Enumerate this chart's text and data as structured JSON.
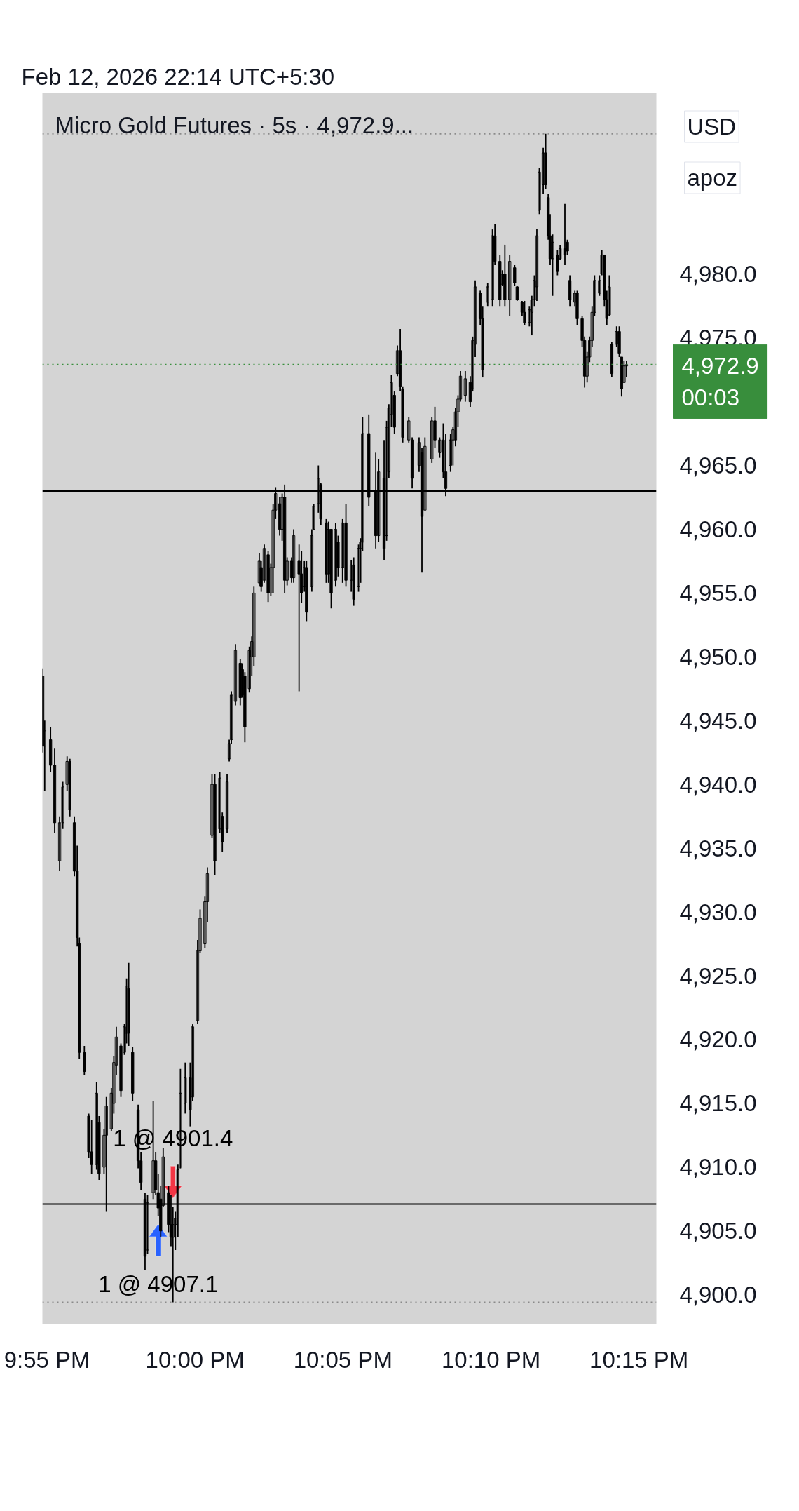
{
  "chart_data": {
    "type": "candlestick",
    "title": "Micro Gold Futures · 5s · 4,972.9...",
    "subtitle": "Feb 12, 2026 22:14 UTC+5:30",
    "color": "#000000",
    "x": [
      21.9143,
      21.9154,
      21.9187,
      21.921,
      21.9238,
      21.9256,
      21.928,
      21.9296,
      21.9321,
      21.9337,
      21.9349,
      21.9377,
      21.9402,
      21.9418,
      21.9446,
      21.946,
      21.9488,
      21.9501,
      21.9529,
      21.9543,
      21.9557,
      21.9583,
      21.9603,
      21.9615,
      21.9627,
      21.9649,
      21.968,
      21.9696,
      21.9719,
      21.9733,
      21.9765,
      21.9779,
      21.9793,
      21.9807,
      21.9821,
      21.9851,
      21.9865,
      21.9876,
      21.989,
      21.9904,
      21.9918,
      21.9945,
      21.9973,
      21.9987,
      22.0015,
      22.0029,
      22.0056,
      22.007,
      22.0096,
      22.0112,
      22.014,
      22.0154,
      22.0181,
      22.0193,
      22.0205,
      22.0228,
      22.0255,
      22.0267,
      22.0281,
      22.0306,
      22.032,
      22.0332,
      22.0362,
      22.0373,
      22.039,
      22.0412,
      22.0427,
      22.044,
      22.0454,
      22.0477,
      22.0491,
      22.0505,
      22.0519,
      22.0544,
      22.0556,
      22.0586,
      22.06,
      22.0616,
      22.0628,
      22.0658,
      22.0669,
      22.0695,
      22.0709,
      22.0739,
      22.0752,
      22.0767,
      22.0792,
      22.0806,
      22.0831,
      22.085,
      22.088,
      22.0894,
      22.0921,
      22.0933,
      22.0944,
      22.0979,
      22.1018,
      22.1034,
      22.1065,
      22.1079,
      22.1092,
      22.1106,
      22.1123,
      22.114,
      22.1156,
      22.117,
      22.1204,
      22.1223,
      22.1262,
      22.1278,
      22.1295,
      22.1334,
      22.1351,
      22.1378,
      22.1398,
      22.1412,
      22.1439,
      22.1453,
      22.1467,
      22.1481,
      22.1495,
      22.1522,
      22.155,
      22.1564,
      22.1578,
      22.1606,
      22.162,
      22.1648,
      22.1675,
      22.1689,
      22.1717,
      22.1731,
      22.1745,
      22.1772,
      22.18,
      22.1814,
      22.1842,
      22.1856,
      22.1883,
      22.1897,
      22.1911,
      22.1925,
      22.1939,
      22.1961,
      22.1975,
      22.1989,
      22.2,
      22.2014,
      22.2041,
      22.2056,
      22.2083,
      22.2097,
      22.2111,
      22.2139,
      22.2152,
      22.218,
      22.2194,
      22.2208,
      22.2222,
      22.2236,
      22.225,
      22.2278,
      22.2291,
      22.2305,
      22.2319,
      22.2333,
      22.2347,
      22.2374,
      22.2389,
      22.2402,
      22.2416,
      22.243
    ],
    "ohlc": [
      [
        4948.5,
        4949.1,
        4942.5,
        4943.0
      ],
      [
        4943.0,
        4945.0,
        4939.5,
        4944.2
      ],
      [
        4943.5,
        4944.5,
        4941.0,
        4941.5
      ],
      [
        4941.5,
        4942.8,
        4936.2,
        4937.0
      ],
      [
        4934.0,
        4937.5,
        4933.2,
        4937.0
      ],
      [
        4937.0,
        4940.2,
        4936.5,
        4939.8
      ],
      [
        4940.0,
        4942.2,
        4939.5,
        4941.8
      ],
      [
        4941.8,
        4942.0,
        4937.5,
        4938.0
      ],
      [
        4937.0,
        4937.5,
        4932.8,
        4933.2
      ],
      [
        4933.2,
        4935.2,
        4927.3,
        4928.0
      ],
      [
        4927.5,
        4928.0,
        4918.5,
        4919.0
      ],
      [
        4919.0,
        4919.5,
        4917.2,
        4917.5
      ],
      [
        4914.0,
        4914.2,
        4910.7,
        4911.2
      ],
      [
        4911.2,
        4913.7,
        4909.5,
        4910.2
      ],
      [
        4910.2,
        4916.7,
        4909.8,
        4915.8
      ],
      [
        4913.5,
        4914.0,
        4909.0,
        4909.5
      ],
      [
        4910.0,
        4913.0,
        4909.5,
        4912.5
      ],
      [
        4912.5,
        4915.5,
        4906.5,
        4914.8
      ],
      [
        4913.0,
        4916.2,
        4912.8,
        4915.8
      ],
      [
        4915.0,
        4918.7,
        4914.2,
        4918.2
      ],
      [
        4918.0,
        4921.0,
        4917.2,
        4920.2
      ],
      [
        4919.5,
        4919.7,
        4915.5,
        4916.0
      ],
      [
        4919.0,
        4921.2,
        4918.8,
        4921.0
      ],
      [
        4920.5,
        4924.8,
        4919.7,
        4924.2
      ],
      [
        4924.0,
        4926.0,
        4919.5,
        4920.5
      ],
      [
        4919.0,
        4919.4,
        4915.2,
        4915.8
      ],
      [
        4914.5,
        4914.9,
        4909.9,
        4910.5
      ],
      [
        4910.5,
        4911.2,
        4908.2,
        4908.8
      ],
      [
        4907.5,
        4908.0,
        4901.9,
        4903.0
      ],
      [
        4903.5,
        4907.8,
        4903.2,
        4907.2
      ],
      [
        4908.0,
        4915.2,
        4907.5,
        4910.5
      ],
      [
        4910.5,
        4911.2,
        4907.8,
        4908.2
      ],
      [
        4908.0,
        4909.5,
        4906.2,
        4906.8
      ],
      [
        4907.5,
        4908.5,
        4904.5,
        4905.0
      ],
      [
        4907.0,
        4911.5,
        4906.9,
        4910.8
      ],
      [
        4908.0,
        4908.5,
        4904.9,
        4905.5
      ],
      [
        4905.5,
        4907.8,
        4903.8,
        4904.5
      ],
      [
        4904.5,
        4906.9,
        4899.4,
        4905.5
      ],
      [
        4905.5,
        4906.5,
        4903.5,
        4906.0
      ],
      [
        4906.0,
        4910.2,
        4904.5,
        4909.8
      ],
      [
        4910.0,
        4917.7,
        4909.9,
        4915.8
      ],
      [
        4915.0,
        4918.2,
        4914.2,
        4917.0
      ],
      [
        4917.0,
        4918.2,
        4913.2,
        4914.5
      ],
      [
        4915.5,
        4921.2,
        4915.2,
        4921.0
      ],
      [
        4921.5,
        4927.8,
        4921.2,
        4927.0
      ],
      [
        4927.0,
        4930.2,
        4926.8,
        4929.5
      ],
      [
        4927.5,
        4931.2,
        4927.2,
        4930.8
      ],
      [
        4930.8,
        4933.5,
        4929.2,
        4933.0
      ],
      [
        4936.0,
        4940.8,
        4935.8,
        4940.0
      ],
      [
        4940.0,
        4940.8,
        4932.9,
        4934.0
      ],
      [
        4936.5,
        4941.0,
        4936.2,
        4940.5
      ],
      [
        4937.5,
        4937.8,
        4934.7,
        4935.5
      ],
      [
        4936.5,
        4940.8,
        4936.2,
        4940.2
      ],
      [
        4942.0,
        4943.5,
        4941.8,
        4943.2
      ],
      [
        4943.5,
        4947.3,
        4943.2,
        4947.0
      ],
      [
        4946.5,
        4951.0,
        4946.2,
        4950.5
      ],
      [
        4949.5,
        4949.8,
        4946.2,
        4946.8
      ],
      [
        4947.0,
        4949.5,
        4946.8,
        4949.0
      ],
      [
        4948.5,
        4948.8,
        4943.3,
        4944.5
      ],
      [
        4947.5,
        4950.8,
        4947.2,
        4950.5
      ],
      [
        4950.0,
        4951.6,
        4948.5,
        4951.2
      ],
      [
        4950.0,
        4955.5,
        4949.3,
        4955.0
      ],
      [
        4955.8,
        4958.1,
        4955.5,
        4957.5
      ],
      [
        4957.0,
        4957.5,
        4955.1,
        4955.5
      ],
      [
        4956.0,
        4958.8,
        4955.8,
        4958.5
      ],
      [
        4958.0,
        4958.3,
        4954.3,
        4955.0
      ],
      [
        4955.0,
        4957.3,
        4954.8,
        4957.0
      ],
      [
        4957.0,
        4962.0,
        4955.0,
        4961.5
      ],
      [
        4961.5,
        4963.3,
        4960.8,
        4962.8
      ],
      [
        4962.0,
        4962.5,
        4959.5,
        4960.0
      ],
      [
        4960.0,
        4962.8,
        4959.1,
        4962.5
      ],
      [
        4962.5,
        4963.5,
        4955.0,
        4956.0
      ],
      [
        4956.0,
        4957.8,
        4955.6,
        4957.5
      ],
      [
        4957.5,
        4957.8,
        4955.8,
        4956.2
      ],
      [
        4956.2,
        4960.0,
        4955.8,
        4959.5
      ],
      [
        4957.5,
        4958.8,
        4947.3,
        4956.5
      ],
      [
        4956.5,
        4958.3,
        4954.2,
        4955.0
      ],
      [
        4955.5,
        4957.5,
        4955.1,
        4957.0
      ],
      [
        4957.0,
        4957.5,
        4952.8,
        4953.5
      ],
      [
        4955.5,
        4960.0,
        4955.1,
        4959.5
      ],
      [
        4960.0,
        4962.0,
        4960.0,
        4961.8
      ],
      [
        4962.0,
        4965.0,
        4961.3,
        4964.0
      ],
      [
        4963.5,
        4963.6,
        4960.3,
        4960.8
      ],
      [
        4960.5,
        4960.8,
        4955.8,
        4956.5
      ],
      [
        4956.5,
        4960.6,
        4955.8,
        4960.0
      ],
      [
        4960.0,
        4960.0,
        4953.8,
        4955.0
      ],
      [
        4956.0,
        4960.5,
        4955.5,
        4960.0
      ],
      [
        4959.0,
        4959.5,
        4956.3,
        4957.0
      ],
      [
        4957.0,
        4960.8,
        4955.8,
        4960.5
      ],
      [
        4960.5,
        4962.0,
        4955.5,
        4956.0
      ],
      [
        4956.0,
        4957.6,
        4955.1,
        4957.2
      ],
      [
        4957.2,
        4957.8,
        4954.0,
        4954.5
      ],
      [
        4955.5,
        4958.8,
        4955.1,
        4958.5
      ],
      [
        4958.5,
        4959.3,
        4955.8,
        4959.0
      ],
      [
        4959.0,
        4968.8,
        4958.3,
        4967.5
      ],
      [
        4967.5,
        4969.0,
        4961.8,
        4962.5
      ],
      [
        4963.0,
        4966.0,
        4958.5,
        4959.5
      ],
      [
        4959.5,
        4965.5,
        4959.0,
        4964.5
      ],
      [
        4964.0,
        4967.0,
        4957.6,
        4958.5
      ],
      [
        4959.5,
        4968.5,
        4959.1,
        4968.0
      ],
      [
        4964.5,
        4969.8,
        4964.0,
        4969.5
      ],
      [
        4969.0,
        4972.1,
        4968.0,
        4971.5
      ],
      [
        4970.5,
        4970.8,
        4967.5,
        4968.0
      ],
      [
        4972.2,
        4974.4,
        4972.0,
        4974.0
      ],
      [
        4974.0,
        4975.7,
        4970.8,
        4971.2
      ],
      [
        4971.0,
        4971.2,
        4966.8,
        4967.2
      ],
      [
        4967.0,
        4968.8,
        4966.8,
        4968.5
      ],
      [
        4967.0,
        4967.2,
        4963.2,
        4964.0
      ],
      [
        4965.0,
        4967.2,
        4964.5,
        4966.8
      ],
      [
        4966.0,
        4966.4,
        4956.6,
        4961.0
      ],
      [
        4961.5,
        4967.2,
        4961.5,
        4966.5
      ],
      [
        4965.5,
        4968.8,
        4965.2,
        4968.5
      ],
      [
        4968.5,
        4969.6,
        4966.4,
        4967.0
      ],
      [
        4966.0,
        4967.2,
        4965.6,
        4967.0
      ],
      [
        4967.0,
        4968.3,
        4964.0,
        4964.5
      ],
      [
        4964.5,
        4967.5,
        4962.6,
        4963.2
      ],
      [
        4965.0,
        4967.5,
        4964.5,
        4967.0
      ],
      [
        4967.0,
        4968.0,
        4965.0,
        4967.8
      ],
      [
        4967.0,
        4969.5,
        4966.5,
        4969.2
      ],
      [
        4969.2,
        4970.5,
        4968.0,
        4970.2
      ],
      [
        4970.2,
        4972.4,
        4970.0,
        4972.0
      ],
      [
        4970.5,
        4972.4,
        4970.0,
        4971.8
      ],
      [
        4971.5,
        4972.0,
        4969.6,
        4970.0
      ],
      [
        4971.0,
        4975.1,
        4970.8,
        4974.8
      ],
      [
        4974.5,
        4979.5,
        4973.5,
        4979.0
      ],
      [
        4978.5,
        4978.7,
        4976.0,
        4976.5
      ],
      [
        4976.5,
        4977.5,
        4971.9,
        4972.5
      ],
      [
        4977.8,
        4979.3,
        4977.5,
        4979.0
      ],
      [
        4978.0,
        4983.5,
        4977.5,
        4983.0
      ],
      [
        4983.0,
        4983.9,
        4980.7,
        4981.0
      ],
      [
        4981.0,
        4981.5,
        4977.5,
        4978.0
      ],
      [
        4979.2,
        4980.3,
        4979.1,
        4980.0
      ],
      [
        4980.0,
        4982.3,
        4977.5,
        4978.0
      ],
      [
        4978.0,
        4981.5,
        4976.7,
        4981.0
      ],
      [
        4980.5,
        4980.7,
        4979.1,
        4979.3
      ],
      [
        4979.0,
        4979.1,
        4977.9,
        4978.0
      ],
      [
        4977.8,
        4977.9,
        4976.7,
        4977.0
      ],
      [
        4977.0,
        4977.9,
        4976.0,
        4976.2
      ],
      [
        4976.2,
        4977.5,
        4975.9,
        4977.2
      ],
      [
        4977.0,
        4978.3,
        4975.2,
        4978.0
      ],
      [
        4978.0,
        4979.9,
        4977.5,
        4979.5
      ],
      [
        4979.0,
        4983.5,
        4977.9,
        4983.0
      ],
      [
        4985.0,
        4988.3,
        4984.7,
        4988.0
      ],
      [
        4987.0,
        4989.9,
        4986.3,
        4989.5
      ],
      [
        4989.5,
        4991.0,
        4986.7,
        4987.0
      ],
      [
        4986.0,
        4986.3,
        4982.7,
        4983.0
      ],
      [
        4983.0,
        4984.7,
        4980.7,
        4981.2
      ],
      [
        4981.2,
        4983.1,
        4978.3,
        4982.5
      ],
      [
        4981.5,
        4981.9,
        4979.9,
        4980.2
      ],
      [
        4981.2,
        4982.3,
        4981.1,
        4982.0
      ],
      [
        4982.0,
        4985.5,
        4980.7,
        4981.5
      ],
      [
        4982.5,
        4982.7,
        4981.5,
        4981.8
      ],
      [
        4979.5,
        4979.9,
        4977.5,
        4978.0
      ],
      [
        4977.8,
        4978.7,
        4977.5,
        4978.5
      ],
      [
        4978.5,
        4978.7,
        4976.0,
        4976.5
      ],
      [
        4976.5,
        4976.7,
        4974.3,
        4974.8
      ],
      [
        4974.8,
        4975.1,
        4971.1,
        4972.0
      ],
      [
        4972.0,
        4973.9,
        4971.5,
        4973.5
      ],
      [
        4973.5,
        4975.1,
        4973.1,
        4974.8
      ],
      [
        4974.8,
        4977.5,
        4974.3,
        4977.0
      ],
      [
        4977.0,
        4979.9,
        4976.7,
        4979.5
      ],
      [
        4978.5,
        4979.9,
        4978.3,
        4979.5
      ],
      [
        4980.0,
        4981.9,
        4979.9,
        4981.5
      ],
      [
        4981.5,
        4981.5,
        4977.5,
        4978.0
      ],
      [
        4978.0,
        4978.7,
        4976.0,
        4976.5
      ],
      [
        4976.8,
        4979.9,
        4976.7,
        4979.0
      ],
      [
        4974.5,
        4974.7,
        4971.9,
        4972.2
      ],
      [
        4974.5,
        4975.9,
        4974.3,
        4975.5
      ],
      [
        4975.5,
        4975.9,
        4973.5,
        4973.8
      ],
      [
        4973.5,
        4973.5,
        4970.4,
        4971.0
      ],
      [
        4971.5,
        4973.2,
        4971.5,
        4972.8
      ],
      [
        4972.8,
        4973.2,
        4971.9,
        4972.9
      ]
    ],
    "xlim": [
      21.9141,
      22.2598
    ],
    "xticks": [
      {
        "value": 21.9167,
        "label": "9:55 PM"
      },
      {
        "value": 22.0,
        "label": "10:00 PM"
      },
      {
        "value": 22.0833,
        "label": "10:05 PM"
      },
      {
        "value": 22.1667,
        "label": "10:10 PM"
      },
      {
        "value": 22.25,
        "label": "10:15 PM"
      }
    ],
    "ylim": [
      4897.7,
      4994.2
    ],
    "yticks": [
      {
        "value": 4900,
        "label": "4,900.0"
      },
      {
        "value": 4905,
        "label": "4,905.0"
      },
      {
        "value": 4910,
        "label": "4,910.0"
      },
      {
        "value": 4915,
        "label": "4,915.0"
      },
      {
        "value": 4920,
        "label": "4,920.0"
      },
      {
        "value": 4925,
        "label": "4,925.0"
      },
      {
        "value": 4930,
        "label": "4,930.0"
      },
      {
        "value": 4935,
        "label": "4,935.0"
      },
      {
        "value": 4940,
        "label": "4,940.0"
      },
      {
        "value": 4945,
        "label": "4,945.0"
      },
      {
        "value": 4950,
        "label": "4,950.0"
      },
      {
        "value": 4955,
        "label": "4,955.0"
      },
      {
        "value": 4960,
        "label": "4,960.0"
      },
      {
        "value": 4965,
        "label": "4,965.0"
      },
      {
        "value": 4975,
        "label": "4,975.0"
      },
      {
        "value": 4980,
        "label": "4,980.0"
      }
    ],
    "ref_lines": [
      {
        "axis": "y",
        "value": 4991.0,
        "color": "#8a8a8a",
        "line_style": "dotted"
      },
      {
        "axis": "y",
        "value": 4972.9,
        "color": "#388e3c",
        "line_style": "dotted",
        "label": "4,972.9\n00:03"
      },
      {
        "axis": "y",
        "value": 4963.0,
        "color": "#000000"
      },
      {
        "axis": "y",
        "value": 4907.1,
        "color": "#000000"
      },
      {
        "axis": "y",
        "value": 4899.4,
        "color": "#8a8a8a",
        "line_style": "dotted"
      }
    ],
    "annotations": [
      "USD",
      "apoz",
      {
        "text": "1 @ 4901.4",
        "x": 21.9876,
        "y": 4906.9
      },
      {
        "text": "1 @ 4907.1",
        "x": 21.9793,
        "y": 4906.2
      }
    ]
  }
}
